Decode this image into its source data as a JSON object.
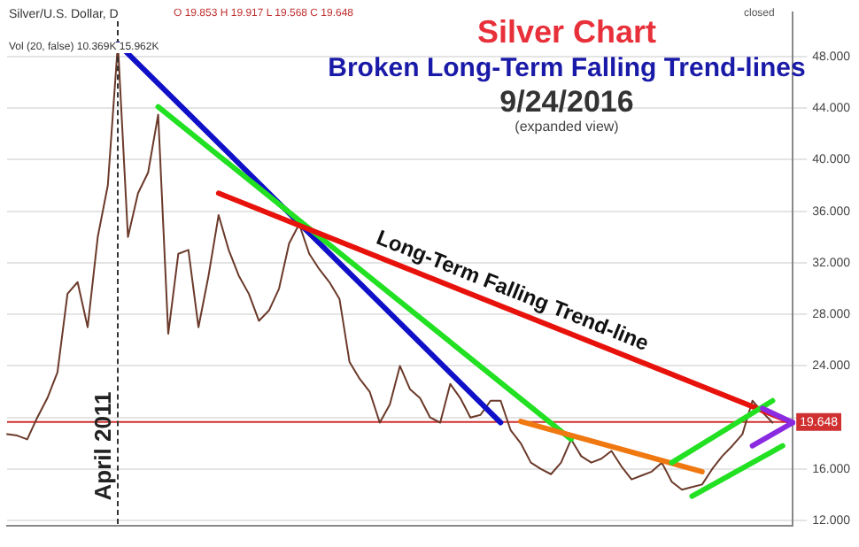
{
  "chart_data": {
    "type": "line",
    "title": "Silver Chart",
    "subtitle": "Broken Long-Term Falling Trend-lines",
    "annotations": [
      "9/24/2016",
      "(expanded view)",
      "Silver/U.S. Dollar, D",
      "O 19.853 H 19.917 L 19.568 C 19.648",
      "Vol (20, false) 10.369K 15.962K",
      "closed",
      "April 2011"
    ],
    "categories": [
      null,
      null,
      null,
      null,
      null,
      null,
      null,
      null,
      null,
      null,
      null,
      null,
      null,
      null,
      null,
      null,
      null,
      null,
      null,
      null,
      null,
      null,
      null,
      null,
      null,
      null,
      null,
      null,
      null,
      null,
      null,
      null,
      null,
      null,
      null,
      null,
      null,
      null,
      null,
      null,
      null,
      null,
      null,
      null,
      null,
      null,
      null,
      null,
      null,
      null,
      null,
      null,
      null,
      null,
      null,
      null,
      null,
      null,
      null,
      null,
      null,
      null,
      null,
      null,
      null,
      null,
      null,
      null,
      null,
      null,
      null,
      null,
      null,
      null,
      null,
      null,
      null,
      null,
      null
    ],
    "ylim": [
      11.6,
      51.4
    ],
    "yticks": [
      {
        "value": 12,
        "label": "12.000"
      },
      {
        "value": 16,
        "label": "16.000"
      },
      {
        "value": 20,
        "label": null
      },
      {
        "value": 24,
        "label": "24.000"
      },
      {
        "value": 28,
        "label": "28.000"
      },
      {
        "value": 32,
        "label": "32.000"
      },
      {
        "value": 36,
        "label": "36.000"
      },
      {
        "value": 40,
        "label": "40.000"
      },
      {
        "value": 44,
        "label": "44.000"
      },
      {
        "value": 48,
        "label": "48.000"
      }
    ],
    "tick_labels": "y",
    "grid": "y",
    "legend": false,
    "marker": "none",
    "series": [
      {
        "color": "#6b3a2a",
        "values": [
          18.7,
          18.6,
          18.3,
          20,
          21.5,
          23.5,
          29.6,
          30.5,
          27,
          34,
          38,
          49,
          34,
          37.4,
          39,
          43.5,
          26.5,
          32.7,
          33,
          27,
          31,
          35.7,
          33,
          31,
          29.6,
          27.5,
          28.3,
          30,
          33.5,
          35,
          32.7,
          31.5,
          30.5,
          29.2,
          24.3,
          23,
          22,
          19.6,
          21,
          24,
          22.2,
          21.5,
          20,
          19.6,
          22.6,
          21.5,
          20,
          20.2,
          21.3,
          21.3,
          19,
          18,
          16.5,
          16,
          15.6,
          16.5,
          18.3,
          17,
          16.5,
          16.8,
          17.4,
          16.2,
          15.2,
          15.5,
          15.8,
          16.5,
          15,
          14.4,
          14.6,
          14.8,
          16,
          17,
          17.8,
          18.7,
          21.3,
          20.4,
          19.6,
          null,
          null
        ]
      },
      {
        "color": "#1010c8",
        "values": [
          null,
          null,
          null,
          null,
          null,
          null,
          null,
          null,
          null,
          null,
          null,
          49,
          null,
          null,
          null,
          null,
          null,
          null,
          null,
          null,
          null,
          null,
          null,
          null,
          null,
          null,
          null,
          null,
          null,
          null,
          null,
          null,
          null,
          null,
          null,
          null,
          null,
          null,
          null,
          null,
          null,
          null,
          null,
          null,
          null,
          null,
          null,
          null,
          null,
          19.6,
          null,
          null,
          null,
          null,
          null,
          null,
          null,
          null,
          null,
          null,
          null,
          null,
          null,
          null,
          null,
          null,
          null,
          null,
          null,
          null,
          null,
          null,
          null,
          null,
          null,
          null,
          null,
          null,
          null
        ]
      },
      {
        "color": "#22e022",
        "values": [
          null,
          null,
          null,
          null,
          null,
          null,
          null,
          null,
          null,
          null,
          null,
          null,
          null,
          null,
          null,
          44.1,
          null,
          null,
          null,
          null,
          null,
          null,
          null,
          null,
          null,
          null,
          null,
          null,
          null,
          null,
          null,
          null,
          null,
          null,
          null,
          null,
          null,
          null,
          null,
          null,
          null,
          null,
          null,
          null,
          null,
          null,
          null,
          null,
          null,
          null,
          null,
          null,
          null,
          null,
          null,
          null,
          18.3,
          null,
          null,
          null,
          null,
          null,
          null,
          null,
          null,
          null,
          null,
          null,
          null,
          null,
          null,
          null,
          null,
          null,
          null,
          null,
          null,
          null,
          null
        ]
      },
      {
        "name": "Long-Term Falling Trend-line",
        "color": "#e8120c",
        "values": [
          null,
          null,
          null,
          null,
          null,
          null,
          null,
          null,
          null,
          null,
          null,
          null,
          null,
          null,
          null,
          null,
          null,
          null,
          null,
          null,
          null,
          37.4,
          null,
          null,
          null,
          null,
          null,
          null,
          null,
          null,
          null,
          null,
          null,
          null,
          null,
          null,
          null,
          null,
          null,
          null,
          null,
          null,
          null,
          null,
          null,
          null,
          null,
          null,
          null,
          null,
          null,
          null,
          null,
          null,
          null,
          null,
          null,
          null,
          null,
          null,
          null,
          null,
          null,
          null,
          null,
          null,
          null,
          null,
          null,
          null,
          null,
          null,
          null,
          null,
          null,
          null,
          null,
          null,
          19.6
        ]
      },
      {
        "color": "#f07810",
        "values": [
          null,
          null,
          null,
          null,
          null,
          null,
          null,
          null,
          null,
          null,
          null,
          null,
          null,
          null,
          null,
          null,
          null,
          null,
          null,
          null,
          null,
          null,
          null,
          null,
          null,
          null,
          null,
          null,
          null,
          null,
          null,
          null,
          null,
          null,
          null,
          null,
          null,
          null,
          null,
          null,
          null,
          null,
          null,
          null,
          null,
          null,
          null,
          null,
          null,
          null,
          null,
          19.7,
          null,
          null,
          null,
          null,
          null,
          null,
          null,
          null,
          null,
          null,
          null,
          null,
          null,
          null,
          null,
          null,
          null,
          15.8,
          null,
          null,
          null,
          null,
          null,
          null,
          null,
          null,
          null
        ]
      },
      {
        "color": "#22e022",
        "values": [
          null,
          null,
          null,
          null,
          null,
          null,
          null,
          null,
          null,
          null,
          null,
          null,
          null,
          null,
          null,
          null,
          null,
          null,
          null,
          null,
          null,
          null,
          null,
          null,
          null,
          null,
          null,
          null,
          null,
          null,
          null,
          null,
          null,
          null,
          null,
          null,
          null,
          null,
          null,
          null,
          null,
          null,
          null,
          null,
          null,
          null,
          null,
          null,
          null,
          null,
          null,
          null,
          null,
          null,
          null,
          null,
          null,
          null,
          null,
          null,
          null,
          null,
          null,
          null,
          null,
          null,
          16.5,
          null,
          null,
          null,
          null,
          null,
          null,
          null,
          null,
          null,
          21.3,
          null,
          null
        ]
      },
      {
        "color": "#22e022",
        "values": [
          null,
          null,
          null,
          null,
          null,
          null,
          null,
          null,
          null,
          null,
          null,
          null,
          null,
          null,
          null,
          null,
          null,
          null,
          null,
          null,
          null,
          null,
          null,
          null,
          null,
          null,
          null,
          null,
          null,
          null,
          null,
          null,
          null,
          null,
          null,
          null,
          null,
          null,
          null,
          null,
          null,
          null,
          null,
          null,
          null,
          null,
          null,
          null,
          null,
          null,
          null,
          null,
          null,
          null,
          null,
          null,
          null,
          null,
          null,
          null,
          null,
          null,
          null,
          null,
          null,
          null,
          null,
          null,
          13.9,
          null,
          null,
          null,
          null,
          null,
          null,
          null,
          null,
          17.8,
          null
        ]
      },
      {
        "color": "#8a2be2",
        "values": [
          null,
          null,
          null,
          null,
          null,
          null,
          null,
          null,
          null,
          null,
          null,
          null,
          null,
          null,
          null,
          null,
          null,
          null,
          null,
          null,
          null,
          null,
          null,
          null,
          null,
          null,
          null,
          null,
          null,
          null,
          null,
          null,
          null,
          null,
          null,
          null,
          null,
          null,
          null,
          null,
          null,
          null,
          null,
          null,
          null,
          null,
          null,
          null,
          null,
          null,
          null,
          null,
          null,
          null,
          null,
          null,
          null,
          null,
          null,
          null,
          null,
          null,
          null,
          null,
          null,
          null,
          null,
          null,
          null,
          null,
          null,
          null,
          null,
          null,
          null,
          20.7,
          null,
          null,
          19.6
        ]
      },
      {
        "color": "#8a2be2",
        "values": [
          null,
          null,
          null,
          null,
          null,
          null,
          null,
          null,
          null,
          null,
          null,
          null,
          null,
          null,
          null,
          null,
          null,
          null,
          null,
          null,
          null,
          null,
          null,
          null,
          null,
          null,
          null,
          null,
          null,
          null,
          null,
          null,
          null,
          null,
          null,
          null,
          null,
          null,
          null,
          null,
          null,
          null,
          null,
          null,
          null,
          null,
          null,
          null,
          null,
          null,
          null,
          null,
          null,
          null,
          null,
          null,
          null,
          null,
          null,
          null,
          null,
          null,
          null,
          null,
          null,
          null,
          null,
          null,
          null,
          null,
          null,
          null,
          null,
          null,
          17.8,
          null,
          null,
          null,
          19.6
        ]
      }
    ],
    "ref_lines": [
      {
        "axis": "y",
        "value": 19.648,
        "label": "19.648",
        "color": "#d03030",
        "line_style": "solid"
      }
    ]
  }
}
